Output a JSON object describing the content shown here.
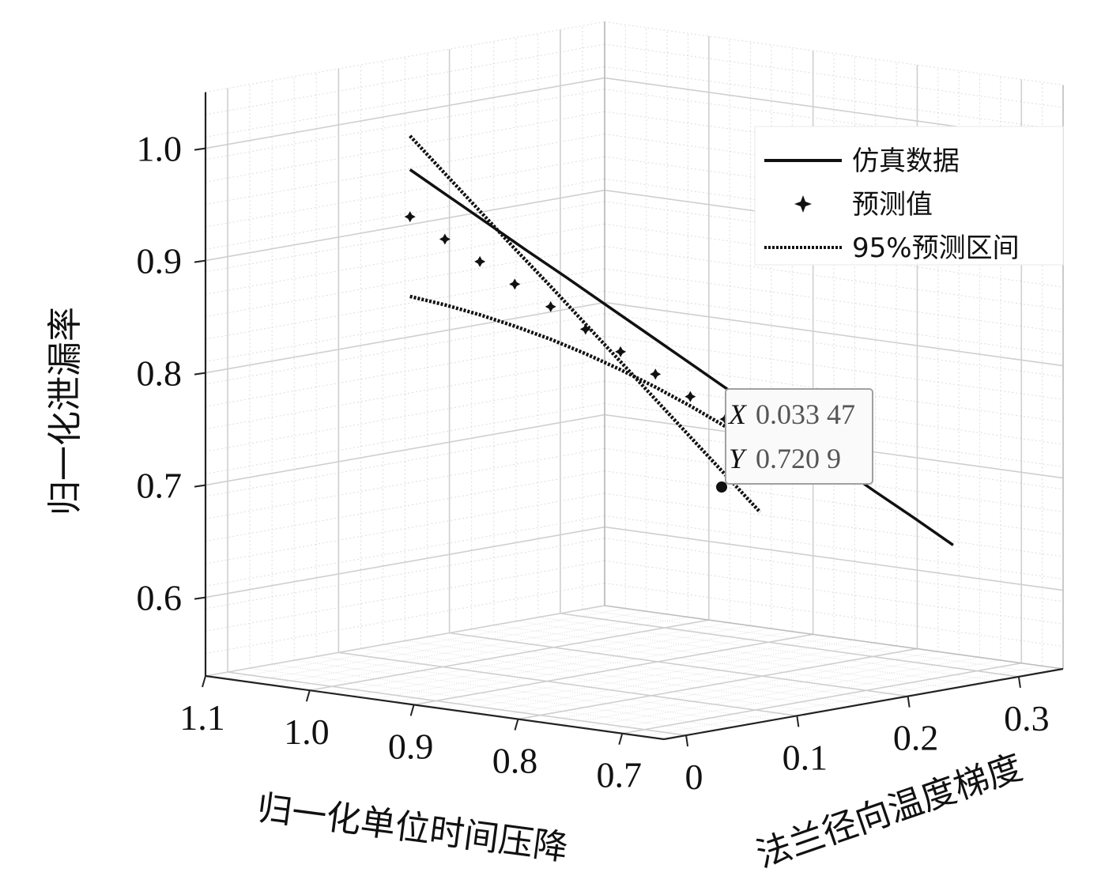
{
  "chart_data": {
    "type": "line3d",
    "xlabel": "归一化单位时间压降",
    "ylabel": "法兰径向温度梯度",
    "zlabel": "归一化泄漏率",
    "x_ticks": [
      "1.1",
      "1.0",
      "0.9",
      "0.8",
      "0.7"
    ],
    "y_ticks": [
      "0",
      "0.1",
      "0.2",
      "0.3"
    ],
    "z_ticks": [
      "1.0",
      "0.9",
      "0.8",
      "0.7",
      "0.6"
    ],
    "xlim": [
      0.66,
      1.1
    ],
    "ylim": [
      -0.02,
      0.34
    ],
    "zlim": [
      0.53,
      1.05
    ],
    "grid": true,
    "legend_position": "top-right",
    "legend": [
      {
        "name": "仿真数据",
        "style": "solid"
      },
      {
        "name": "预测值",
        "style": "marker"
      },
      {
        "name": "95%预测区间",
        "style": "dotted"
      }
    ],
    "series": [
      {
        "name": "仿真数据",
        "style": "solid",
        "x": [
          0.925,
          0.911,
          0.897,
          0.883,
          0.868,
          0.854,
          0.84,
          0.826,
          0.812,
          0.798,
          0.784,
          0.77,
          0.756,
          0.741,
          0.727
        ],
        "y": [
          0.0,
          0.0217,
          0.0434,
          0.0651,
          0.0868,
          0.1085,
          0.1302,
          0.1519,
          0.1736,
          0.1953,
          0.217,
          0.2387,
          0.2604,
          0.2821,
          0.3038
        ],
        "z": [
          1.0,
          0.9741,
          0.9483,
          0.9224,
          0.8966,
          0.8707,
          0.8449,
          0.819,
          0.7931,
          0.7673,
          0.7414,
          0.7156,
          0.6897,
          0.6639,
          0.638
        ]
      },
      {
        "name": "预测值",
        "style": "marker",
        "x": [
          0.925,
          0.911,
          0.897,
          0.883,
          0.868,
          0.854,
          0.84,
          0.826,
          0.812,
          0.798,
          0.784
        ],
        "y": [
          0.0,
          0.0183,
          0.0367,
          0.055,
          0.0733,
          0.0916,
          0.11,
          0.1283,
          0.1466,
          0.1649,
          0.1833
        ],
        "z": [
          0.958,
          0.9366,
          0.9152,
          0.8938,
          0.8724,
          0.851,
          0.8295,
          0.8081,
          0.7867,
          0.7653,
          0.7439
        ]
      },
      {
        "name": "95%预测区间 上限",
        "style": "dotted",
        "x": [
          0.925,
          0.911,
          0.897,
          0.883,
          0.868,
          0.854,
          0.84,
          0.826,
          0.812,
          0.798,
          0.784
        ],
        "y": [
          0.0,
          0.0183,
          0.0367,
          0.055,
          0.0733,
          0.0916,
          0.11,
          0.1283,
          0.1466,
          0.1649,
          0.1833
        ],
        "z": [
          1.03,
          0.9951,
          0.9602,
          0.9253,
          0.8904,
          0.8555,
          0.8206,
          0.7857,
          0.7508,
          0.7159,
          0.681
        ]
      },
      {
        "name": "95%预测区间 下限",
        "style": "dotted",
        "x": [
          0.925,
          0.911,
          0.897,
          0.883,
          0.868,
          0.854,
          0.84,
          0.826,
          0.812,
          0.798,
          0.784
        ],
        "y": [
          0.0,
          0.0183,
          0.0367,
          0.055,
          0.0733,
          0.0916,
          0.11,
          0.1283,
          0.1466,
          0.1649,
          0.1833
        ],
        "z": [
          0.887,
          0.8781,
          0.8679,
          0.8563,
          0.8434,
          0.8291,
          0.8135,
          0.7966,
          0.7784,
          0.7588,
          0.738
        ]
      }
    ],
    "datatip": {
      "x_label": "X",
      "x_value": "0.033 47",
      "y_label": "Y",
      "y_value": "0.720 9"
    }
  }
}
